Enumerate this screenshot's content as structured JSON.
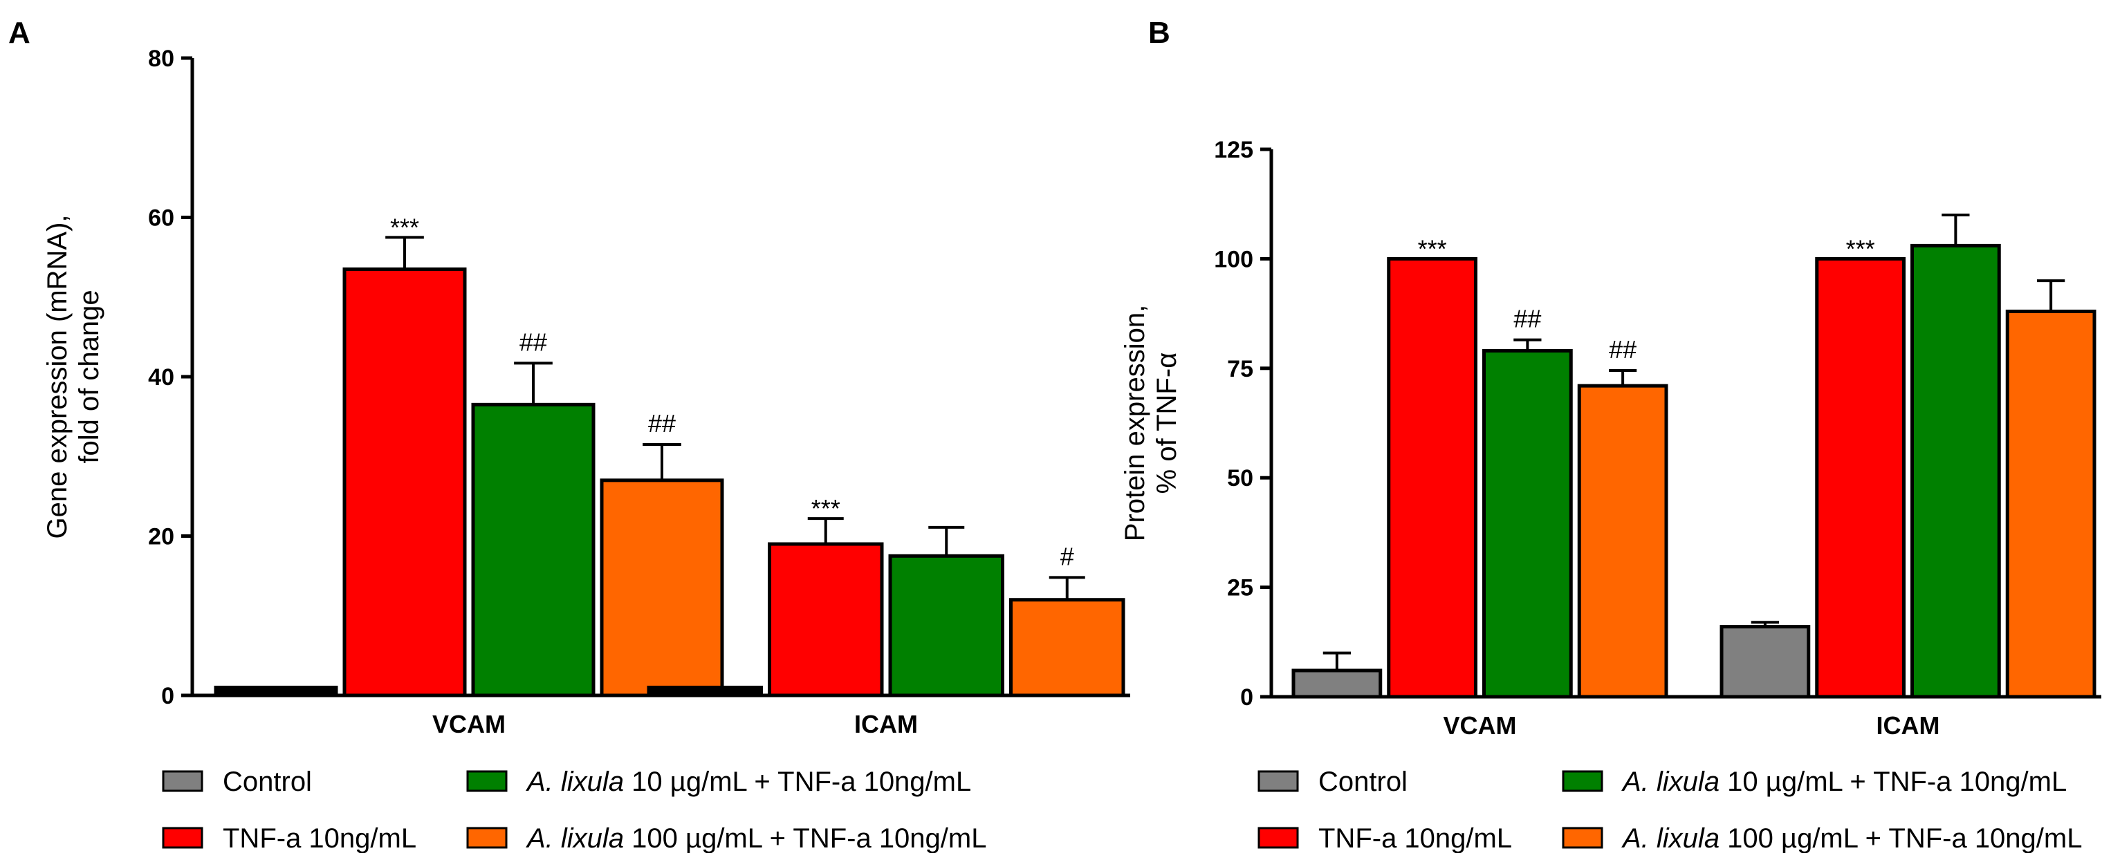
{
  "chart_data": [
    {
      "panel": "A",
      "type": "bar",
      "categories": [
        "VCAM",
        "ICAM"
      ],
      "ylabel_lines": [
        "Gene expression (mRNA),",
        "fold of change"
      ],
      "ylim": [
        0,
        80
      ],
      "yticks": [
        0,
        20,
        40,
        60,
        80
      ],
      "series": [
        {
          "name": "Control",
          "color": "#000000",
          "values": [
            1,
            1
          ],
          "errors": [
            0,
            0
          ],
          "labels": [
            "",
            ""
          ]
        },
        {
          "name": "TNF-a 10ng/mL",
          "color": "#ff0000",
          "values": [
            53.5,
            19
          ],
          "errors": [
            4,
            3.2
          ],
          "labels": [
            "***",
            "***"
          ]
        },
        {
          "name": "A. lixula 10 µg/mL + TNF-a 10ng/mL",
          "color": "#008000",
          "values": [
            36.5,
            17.5
          ],
          "errors": [
            5.2,
            3.6
          ],
          "labels": [
            "##",
            ""
          ]
        },
        {
          "name": "A. lixula 100 µg/mL + TNF-a 10ng/mL",
          "color": "#ff6600",
          "values": [
            27,
            12
          ],
          "errors": [
            4.5,
            2.8
          ],
          "labels": [
            "##",
            "#"
          ]
        }
      ]
    },
    {
      "panel": "B",
      "type": "bar",
      "categories": [
        "VCAM",
        "ICAM"
      ],
      "ylabel_lines": [
        "Protein expression,",
        "% of TNF-α"
      ],
      "ylim": [
        0,
        125
      ],
      "yticks": [
        0,
        25,
        50,
        75,
        100,
        125
      ],
      "series": [
        {
          "name": "Control",
          "color": "#808080",
          "values": [
            6,
            16
          ],
          "errors": [
            4,
            1
          ],
          "labels": [
            "",
            ""
          ]
        },
        {
          "name": "TNF-a 10ng/mL",
          "color": "#ff0000",
          "values": [
            100,
            100
          ],
          "errors": [
            0,
            0
          ],
          "labels": [
            "***",
            "***"
          ]
        },
        {
          "name": "A. lixula 10 µg/mL + TNF-a 10ng/mL",
          "color": "#008000",
          "values": [
            79,
            103
          ],
          "errors": [
            2.5,
            7
          ],
          "labels": [
            "##",
            ""
          ]
        },
        {
          "name": "A. lixula 100 µg/mL + TNF-a 10ng/mL",
          "color": "#ff6600",
          "values": [
            71,
            88
          ],
          "errors": [
            3.5,
            7
          ],
          "labels": [
            "##",
            ""
          ]
        }
      ]
    }
  ],
  "legend": {
    "swatch_color": "#808080",
    "items": [
      {
        "italic": "",
        "text": "Control"
      },
      {
        "italic": "A. lixula",
        "text": " 10 µg/mL + TNF-a 10ng/mL"
      },
      {
        "italic": "",
        "text": "TNF-a 10ng/mL"
      },
      {
        "italic": "A. lixula",
        "text": " 100 µg/mL + TNF-a 10ng/mL"
      }
    ]
  }
}
